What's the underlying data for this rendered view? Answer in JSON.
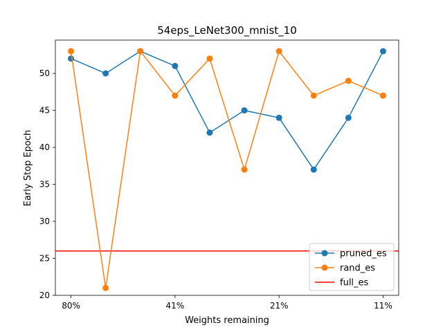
{
  "chart_data": {
    "type": "line",
    "title": "54eps_LeNet300_mnist_10",
    "xlabel": "Weights remaining",
    "ylabel": "Early Stop Epoch",
    "x_tick_labels": [
      "80%",
      "41%",
      "21%",
      "11%"
    ],
    "x_tick_positions": [
      0,
      3,
      6,
      9
    ],
    "y_ticks": [
      20,
      25,
      30,
      35,
      40,
      45,
      50
    ],
    "xlim": [
      -0.45,
      9.45
    ],
    "ylim": [
      20,
      54.5
    ],
    "legend_position": "lower right",
    "grid": false,
    "series": [
      {
        "name": "pruned_es",
        "color": "#1f77b4",
        "marker": "circle",
        "x": [
          0,
          1,
          2,
          3,
          4,
          5,
          6,
          7,
          8,
          9
        ],
        "values": [
          52,
          50,
          53,
          51,
          42,
          45,
          44,
          37,
          44,
          53
        ]
      },
      {
        "name": "rand_es",
        "color": "#ff7f0e",
        "marker": "circle",
        "x": [
          0,
          1,
          2,
          3,
          4,
          5,
          6,
          7,
          8,
          9
        ],
        "values": [
          53,
          21,
          53,
          47,
          52,
          37,
          53,
          47,
          49,
          47
        ]
      }
    ],
    "reference_line": {
      "name": "full_es",
      "color": "#ff0000",
      "value": 26
    }
  }
}
